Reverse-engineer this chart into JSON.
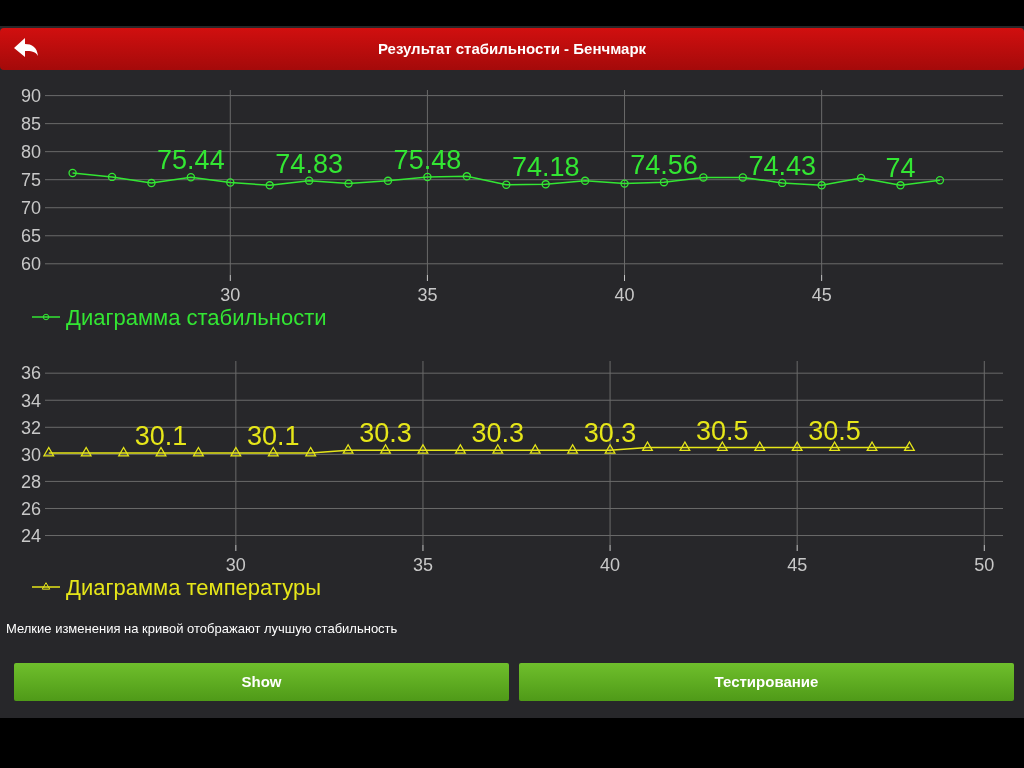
{
  "chart_data": [
    {
      "type": "line",
      "title": "Результат стабильности - Бенчмарк",
      "x": [
        26,
        27,
        28,
        29,
        30,
        31,
        32,
        33,
        34,
        35,
        36,
        37,
        38,
        39,
        40,
        41,
        42,
        43,
        44,
        45,
        46,
        47,
        48
      ],
      "series": [
        {
          "name": "Диаграмма стабильности",
          "color": "#33e633",
          "values": [
            76.2,
            75.5,
            74.4,
            75.44,
            74.5,
            74.0,
            74.83,
            74.3,
            74.8,
            75.48,
            75.6,
            74.1,
            74.18,
            74.8,
            74.3,
            74.56,
            75.4,
            75.4,
            74.43,
            74.0,
            75.3,
            74,
            74.9
          ],
          "value_labels": [
            null,
            null,
            null,
            "75.44",
            null,
            null,
            "74.83",
            null,
            null,
            "75.48",
            null,
            null,
            "74.18",
            null,
            null,
            "74.56",
            null,
            null,
            "74.43",
            null,
            null,
            "74",
            null
          ]
        }
      ],
      "xlim": [
        25.3,
        49.6
      ],
      "xticks": [
        30,
        35,
        40,
        45
      ],
      "ylim": [
        58,
        91
      ],
      "yticks": [
        60,
        65,
        70,
        75,
        80,
        85,
        90
      ],
      "grid": true,
      "legend": "bottom left",
      "marker": "circle"
    },
    {
      "type": "line",
      "x": [
        25,
        26,
        27,
        28,
        29,
        30,
        31,
        32,
        33,
        34,
        35,
        36,
        37,
        38,
        39,
        40,
        41,
        42,
        43,
        44,
        45,
        46,
        47,
        48
      ],
      "series": [
        {
          "name": "Диаграмма температуры",
          "color": "#e6e619",
          "values": [
            30.1,
            30.1,
            30.1,
            30.1,
            30.1,
            30.1,
            30.1,
            30.1,
            30.3,
            30.3,
            30.3,
            30.3,
            30.3,
            30.3,
            30.3,
            30.3,
            30.5,
            30.5,
            30.5,
            30.5,
            30.5,
            30.5,
            30.5,
            30.5
          ],
          "value_labels": [
            null,
            null,
            null,
            "30.1",
            null,
            null,
            "30.1",
            null,
            null,
            "30.3",
            null,
            null,
            "30.3",
            null,
            null,
            "30.3",
            null,
            null,
            "30.5",
            null,
            null,
            "30.5",
            null,
            null
          ]
        }
      ],
      "xlim": [
        24.9,
        50.5
      ],
      "xticks": [
        30,
        35,
        40,
        45,
        50
      ],
      "ylim": [
        23.3,
        36.9
      ],
      "yticks": [
        24,
        26,
        28,
        30,
        32,
        34,
        36
      ],
      "grid": true,
      "legend": "bottom left",
      "marker": "triangle",
      "annotations": [
        "Мелкие изменения на кривой отображают лучшую стабильность",
        "Show",
        "Тестирование"
      ]
    }
  ]
}
